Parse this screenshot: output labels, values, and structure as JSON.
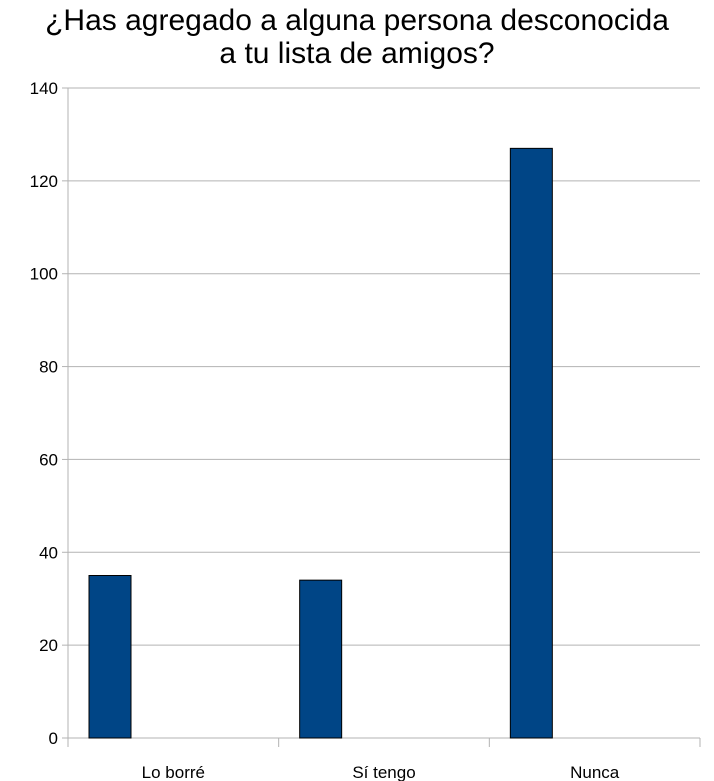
{
  "chart_data": {
    "type": "bar",
    "title": [
      "¿Has agregado a alguna persona desconocida",
      "a tu lista de amigos?"
    ],
    "categories": [
      "Lo borré",
      "Sí tengo",
      "Nunca"
    ],
    "values": [
      35,
      34,
      127
    ],
    "ylim": [
      0,
      140
    ],
    "yticks": [
      0,
      20,
      40,
      60,
      80,
      100,
      120,
      140
    ],
    "grid": true,
    "legend": "none",
    "colors": {
      "bar": "#004586",
      "grid": "#b3b3b3",
      "axis": "#b3b3b3"
    }
  }
}
